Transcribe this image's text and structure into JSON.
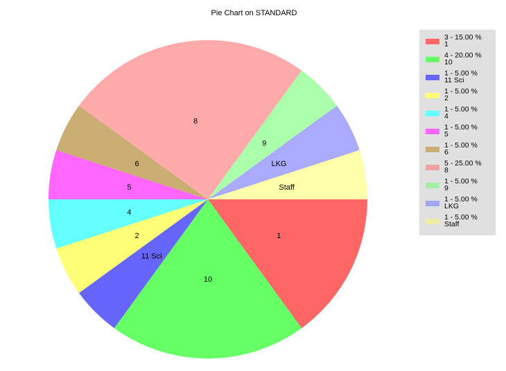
{
  "chart_data": {
    "type": "pie",
    "title": "Pie Chart on STANDARD",
    "start_angle_deg": 0,
    "direction": "clockwise",
    "slices": [
      {
        "label": "1",
        "value": 3,
        "percent": "15.00 %",
        "color": "#ff6666"
      },
      {
        "label": "10",
        "value": 4,
        "percent": "20.00 %",
        "color": "#66ff66"
      },
      {
        "label": "11 Sci",
        "value": 1,
        "percent": "5.00 %",
        "color": "#6666ff"
      },
      {
        "label": "2",
        "value": 1,
        "percent": "5.00 %",
        "color": "#ffff77"
      },
      {
        "label": "4",
        "value": 1,
        "percent": "5.00 %",
        "color": "#66ffff"
      },
      {
        "label": "5",
        "value": 1,
        "percent": "5.00 %",
        "color": "#ff66ff"
      },
      {
        "label": "6",
        "value": 1,
        "percent": "5.00 %",
        "color": "#c9ad72"
      },
      {
        "label": "8",
        "value": 5,
        "percent": "25.00 %",
        "color": "#ffaaaa"
      },
      {
        "label": "9",
        "value": 1,
        "percent": "5.00 %",
        "color": "#aaffaa"
      },
      {
        "label": "LKG",
        "value": 1,
        "percent": "5.00 %",
        "color": "#aaaaff"
      },
      {
        "label": "Staff",
        "value": 1,
        "percent": "5.00 %",
        "color": "#ffffaa"
      }
    ],
    "legend": {
      "placement": "right",
      "items": [
        {
          "line1": "3 - 15.00 %",
          "line2": "1",
          "color": "#ff6666"
        },
        {
          "line1": "4 - 20.00 %",
          "line2": "10",
          "color": "#66ff66"
        },
        {
          "line1": "1 - 5.00 %",
          "line2": "11 Sci",
          "color": "#6666ff"
        },
        {
          "line1": "1 - 5.00 %",
          "line2": "2",
          "color": "#ffff77"
        },
        {
          "line1": "1 - 5.00 %",
          "line2": "4",
          "color": "#66ffff"
        },
        {
          "line1": "1 - 5.00 %",
          "line2": "5",
          "color": "#ff66ff"
        },
        {
          "line1": "1 - 5.00 %",
          "line2": "6",
          "color": "#c9ad72"
        },
        {
          "line1": "5 - 25.00 %",
          "line2": "8",
          "color": "#eea3a3"
        },
        {
          "line1": "1 - 5.00 %",
          "line2": "9",
          "color": "#a3eea3"
        },
        {
          "line1": "1 - 5.00 %",
          "line2": "LKG",
          "color": "#a3a3ee"
        },
        {
          "line1": "1 - 5.00 %",
          "line2": "Staff",
          "color": "#eeeea3"
        }
      ]
    }
  }
}
